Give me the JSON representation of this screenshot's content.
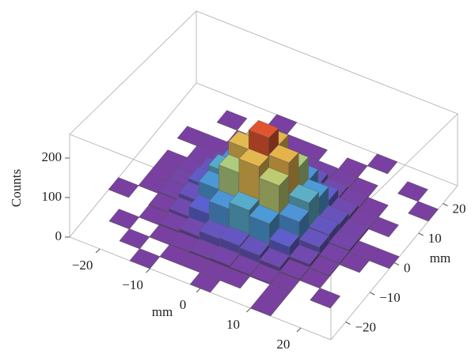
{
  "chart_data": {
    "type": "histogram3d",
    "x_label": "mm",
    "y_label": "mm",
    "z_label": "Counts",
    "xlim": [
      -26,
      26
    ],
    "ylim": [
      -26,
      26
    ],
    "zlim": [
      0,
      260
    ],
    "x_bins": [
      -26,
      -22,
      -18,
      -14,
      -10,
      -6,
      -2,
      2,
      6,
      10,
      14,
      18,
      22,
      26
    ],
    "y_bins": [
      -26,
      -22,
      -18,
      -14,
      -10,
      -6,
      -2,
      2,
      6,
      10,
      14,
      18,
      22,
      26
    ],
    "xticks": [
      {
        "value": -20,
        "label": "−20"
      },
      {
        "value": -10,
        "label": "−10"
      },
      0,
      10,
      20
    ],
    "yticks": [
      {
        "value": -20,
        "label": "−20"
      },
      {
        "value": -10,
        "label": "−10"
      },
      0,
      10,
      20
    ],
    "zticks": [
      0,
      100,
      200
    ],
    "colormap": [
      "#7b3fa0",
      "#5a62d2",
      "#4aa2d8",
      "#86cc9c",
      "#dccb5c",
      "#f09a3a",
      "#d8302a"
    ],
    "values": [
      [
        0,
        0,
        0,
        1,
        0,
        0,
        1,
        0,
        0,
        1,
        0,
        0,
        0
      ],
      [
        0,
        0,
        1,
        0,
        1,
        1,
        1,
        1,
        0,
        1,
        0,
        0,
        0
      ],
      [
        0,
        1,
        0,
        1,
        3,
        6,
        8,
        5,
        3,
        1,
        0,
        1,
        0
      ],
      [
        0,
        0,
        1,
        5,
        12,
        27,
        30,
        25,
        14,
        4,
        1,
        0,
        0
      ],
      [
        1,
        0,
        3,
        13,
        42,
        78,
        96,
        81,
        38,
        12,
        3,
        0,
        0
      ],
      [
        0,
        1,
        6,
        24,
        80,
        150,
        190,
        158,
        77,
        27,
        5,
        1,
        0
      ],
      [
        0,
        1,
        7,
        33,
        95,
        188,
        245,
        195,
        100,
        30,
        8,
        1,
        1
      ],
      [
        0,
        1,
        5,
        27,
        76,
        156,
        194,
        150,
        82,
        25,
        6,
        0,
        0
      ],
      [
        0,
        0,
        4,
        12,
        41,
        80,
        97,
        77,
        39,
        14,
        3,
        1,
        0
      ],
      [
        0,
        1,
        1,
        4,
        14,
        25,
        33,
        27,
        12,
        5,
        1,
        0,
        0
      ],
      [
        0,
        0,
        0,
        1,
        3,
        7,
        6,
        6,
        4,
        1,
        0,
        0,
        1
      ],
      [
        0,
        0,
        1,
        0,
        1,
        1,
        1,
        0,
        1,
        0,
        0,
        1,
        0
      ],
      [
        0,
        0,
        0,
        0,
        1,
        0,
        0,
        0,
        0,
        1,
        0,
        0,
        0
      ]
    ]
  }
}
